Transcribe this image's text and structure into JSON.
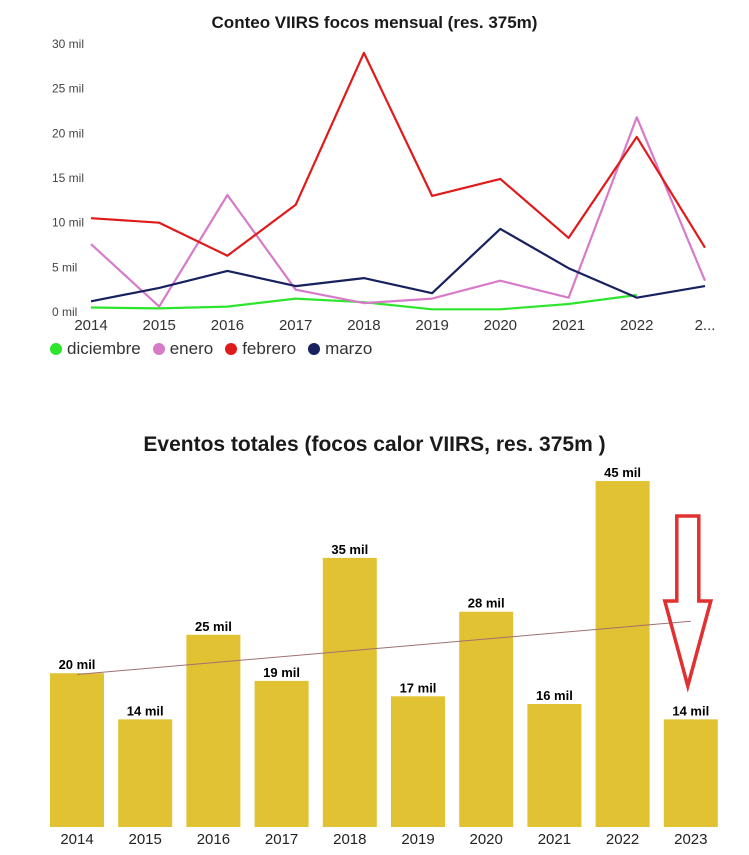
{
  "chart_data": [
    {
      "type": "line",
      "title": "Conteo VIIRS focos mensual (res. 375m)",
      "x": [
        "2014",
        "2015",
        "2016",
        "2017",
        "2018",
        "2019",
        "2020",
        "2021",
        "2022",
        "2..."
      ],
      "ytick_labels": [
        "0 mil",
        "5 mil",
        "10 mil",
        "15 mil",
        "20 mil",
        "25 mil",
        "30 mil"
      ],
      "ylim": [
        0,
        30000
      ],
      "legend_position": "bottom-left",
      "series": [
        {
          "name": "diciembre",
          "color": "#2ee52e",
          "values": [
            500,
            400,
            600,
            1500,
            1100,
            300,
            300,
            900,
            1900,
            null
          ]
        },
        {
          "name": "enero",
          "color": "#d77bc9",
          "values": [
            7600,
            600,
            13100,
            2500,
            1000,
            1500,
            3500,
            1600,
            21800,
            3500
          ]
        },
        {
          "name": "febrero",
          "color": "#e01a1a",
          "values": [
            10500,
            10000,
            6300,
            12000,
            29000,
            13000,
            14900,
            8300,
            19600,
            7200
          ]
        },
        {
          "name": "marzo",
          "color": "#17215e",
          "values": [
            1200,
            2700,
            4600,
            2900,
            3800,
            2100,
            9300,
            4900,
            1600,
            2900
          ]
        }
      ]
    },
    {
      "type": "bar",
      "title": "Eventos totales (focos calor VIIRS, res. 375m )",
      "categories": [
        "2014",
        "2015",
        "2016",
        "2017",
        "2018",
        "2019",
        "2020",
        "2021",
        "2022",
        "2023"
      ],
      "values": [
        20000,
        14000,
        25000,
        19000,
        35000,
        17000,
        28000,
        16000,
        45000,
        14000
      ],
      "data_labels": [
        "20 mil",
        "14 mil",
        "25 mil",
        "19 mil",
        "35 mil",
        "17 mil",
        "28 mil",
        "16 mil",
        "45 mil",
        "14 mil"
      ],
      "ylim": [
        0,
        45000
      ],
      "bar_color": "#e0c232",
      "trendline": true,
      "trendline_color": "#a07070",
      "annotation": "red-down-arrow",
      "annotation_color": "#e03030"
    }
  ]
}
